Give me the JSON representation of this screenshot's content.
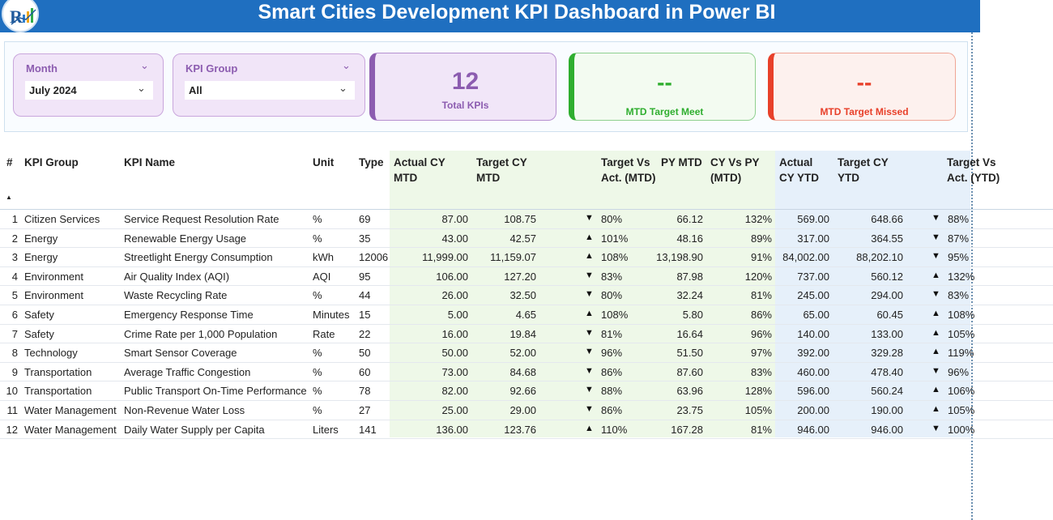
{
  "header": {
    "title": "Smart Cities Development KPI Dashboard in Power BI",
    "logo_icon": "company-logo-icon"
  },
  "filters": {
    "month": {
      "label": "Month",
      "value": "July 2024"
    },
    "kpi_group": {
      "label": "KPI Group",
      "value": "All"
    }
  },
  "cards": {
    "total": {
      "value": "12",
      "label": "Total KPIs",
      "color": "#8c5cb0"
    },
    "met": {
      "value": "--",
      "label": "MTD Target Meet",
      "color": "#2fae2f"
    },
    "missed": {
      "value": "--",
      "label": "MTD Target Missed",
      "color": "#e8402a"
    }
  },
  "table": {
    "headers": {
      "index": "#",
      "group": "KPI Group",
      "name": "KPI Name",
      "unit": "Unit",
      "type": "Type",
      "actual_mtd": "Actual CY MTD",
      "target_mtd": "Target CY MTD",
      "tva_mtd": "Target Vs Act. (MTD)",
      "py_mtd": "PY MTD",
      "cyvspy_mtd": "CY Vs PY (MTD)",
      "actual_ytd": "Actual CY YTD",
      "target_ytd": "Target CY YTD",
      "tva_ytd": "Target Vs Act. (YTD)"
    },
    "sort_icon": "sort-ascending-icon",
    "rows": [
      {
        "idx": "1",
        "group": "Citizen Services",
        "name": "Service Request Resolution Rate",
        "unit": "%",
        "type": "69",
        "actual_mtd": "87.00",
        "target_mtd": "108.75",
        "tri_mtd": "▼",
        "tva_mtd": "80%",
        "py_mtd": "66.12",
        "cyvspy": "132%",
        "actual_ytd": "569.00",
        "target_ytd": "648.66",
        "tri_ytd": "▼",
        "tva_ytd": "88%"
      },
      {
        "idx": "2",
        "group": "Energy",
        "name": "Renewable Energy Usage",
        "unit": "%",
        "type": "35",
        "actual_mtd": "43.00",
        "target_mtd": "42.57",
        "tri_mtd": "▲",
        "tva_mtd": "101%",
        "py_mtd": "48.16",
        "cyvspy": "89%",
        "actual_ytd": "317.00",
        "target_ytd": "364.55",
        "tri_ytd": "▼",
        "tva_ytd": "87%"
      },
      {
        "idx": "3",
        "group": "Energy",
        "name": "Streetlight Energy Consumption",
        "unit": "kWh",
        "type": "12006",
        "actual_mtd": "11,999.00",
        "target_mtd": "11,159.07",
        "tri_mtd": "▲",
        "tva_mtd": "108%",
        "py_mtd": "13,198.90",
        "cyvspy": "91%",
        "actual_ytd": "84,002.00",
        "target_ytd": "88,202.10",
        "tri_ytd": "▼",
        "tva_ytd": "95%"
      },
      {
        "idx": "4",
        "group": "Environment",
        "name": "Air Quality Index (AQI)",
        "unit": "AQI",
        "type": "95",
        "actual_mtd": "106.00",
        "target_mtd": "127.20",
        "tri_mtd": "▼",
        "tva_mtd": "83%",
        "py_mtd": "87.98",
        "cyvspy": "120%",
        "actual_ytd": "737.00",
        "target_ytd": "560.12",
        "tri_ytd": "▲",
        "tva_ytd": "132%"
      },
      {
        "idx": "5",
        "group": "Environment",
        "name": "Waste Recycling Rate",
        "unit": "%",
        "type": "44",
        "actual_mtd": "26.00",
        "target_mtd": "32.50",
        "tri_mtd": "▼",
        "tva_mtd": "80%",
        "py_mtd": "32.24",
        "cyvspy": "81%",
        "actual_ytd": "245.00",
        "target_ytd": "294.00",
        "tri_ytd": "▼",
        "tva_ytd": "83%"
      },
      {
        "idx": "6",
        "group": "Safety",
        "name": "Emergency Response Time",
        "unit": "Minutes",
        "type": "15",
        "actual_mtd": "5.00",
        "target_mtd": "4.65",
        "tri_mtd": "▲",
        "tva_mtd": "108%",
        "py_mtd": "5.80",
        "cyvspy": "86%",
        "actual_ytd": "65.00",
        "target_ytd": "60.45",
        "tri_ytd": "▲",
        "tva_ytd": "108%"
      },
      {
        "idx": "7",
        "group": "Safety",
        "name": "Crime Rate per 1,000 Population",
        "unit": "Rate",
        "type": "22",
        "actual_mtd": "16.00",
        "target_mtd": "19.84",
        "tri_mtd": "▼",
        "tva_mtd": "81%",
        "py_mtd": "16.64",
        "cyvspy": "96%",
        "actual_ytd": "140.00",
        "target_ytd": "133.00",
        "tri_ytd": "▲",
        "tva_ytd": "105%"
      },
      {
        "idx": "8",
        "group": "Technology",
        "name": "Smart Sensor Coverage",
        "unit": "%",
        "type": "50",
        "actual_mtd": "50.00",
        "target_mtd": "52.00",
        "tri_mtd": "▼",
        "tva_mtd": "96%",
        "py_mtd": "51.50",
        "cyvspy": "97%",
        "actual_ytd": "392.00",
        "target_ytd": "329.28",
        "tri_ytd": "▲",
        "tva_ytd": "119%"
      },
      {
        "idx": "9",
        "group": "Transportation",
        "name": "Average Traffic Congestion",
        "unit": "%",
        "type": "60",
        "actual_mtd": "73.00",
        "target_mtd": "84.68",
        "tri_mtd": "▼",
        "tva_mtd": "86%",
        "py_mtd": "87.60",
        "cyvspy": "83%",
        "actual_ytd": "460.00",
        "target_ytd": "478.40",
        "tri_ytd": "▼",
        "tva_ytd": "96%"
      },
      {
        "idx": "10",
        "group": "Transportation",
        "name": "Public Transport On-Time Performance",
        "unit": "%",
        "type": "78",
        "actual_mtd": "82.00",
        "target_mtd": "92.66",
        "tri_mtd": "▼",
        "tva_mtd": "88%",
        "py_mtd": "63.96",
        "cyvspy": "128%",
        "actual_ytd": "596.00",
        "target_ytd": "560.24",
        "tri_ytd": "▲",
        "tva_ytd": "106%"
      },
      {
        "idx": "11",
        "group": "Water Management",
        "name": "Non-Revenue Water Loss",
        "unit": "%",
        "type": "27",
        "actual_mtd": "25.00",
        "target_mtd": "29.00",
        "tri_mtd": "▼",
        "tva_mtd": "86%",
        "py_mtd": "23.75",
        "cyvspy": "105%",
        "actual_ytd": "200.00",
        "target_ytd": "190.00",
        "tri_ytd": "▲",
        "tva_ytd": "105%"
      },
      {
        "idx": "12",
        "group": "Water Management",
        "name": "Daily Water Supply per Capita",
        "unit": "Liters",
        "type": "141",
        "actual_mtd": "136.00",
        "target_mtd": "123.76",
        "tri_mtd": "▲",
        "tva_mtd": "110%",
        "py_mtd": "167.28",
        "cyvspy": "81%",
        "actual_ytd": "946.00",
        "target_ytd": "946.00",
        "tri_ytd": "▼",
        "tva_ytd": "100%"
      }
    ]
  }
}
